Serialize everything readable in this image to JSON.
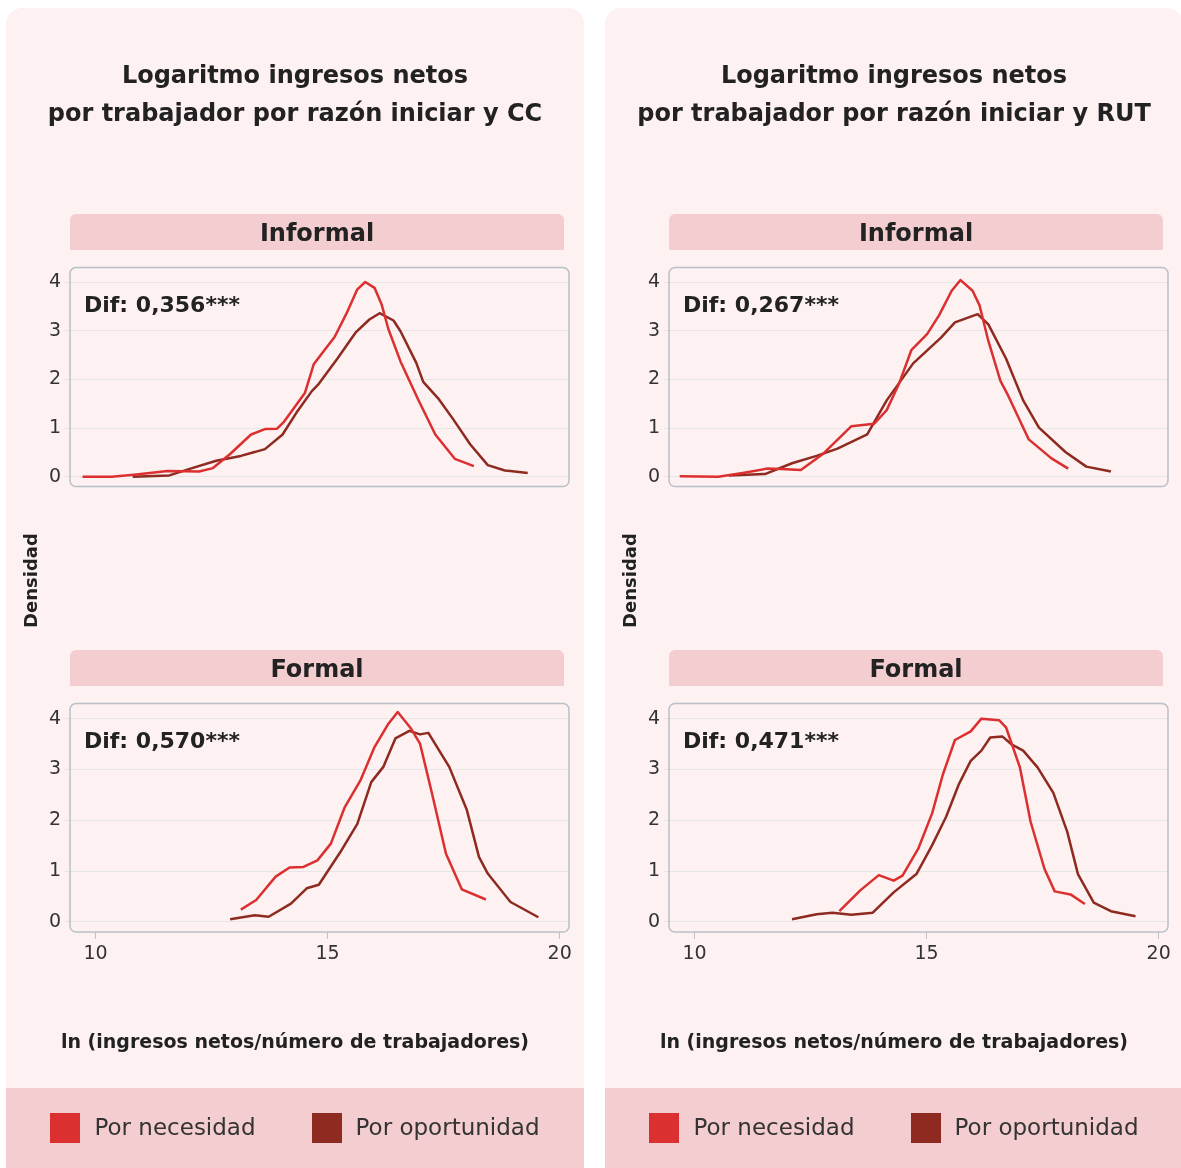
{
  "chart_data": [
    {
      "type": "line",
      "title": "Logaritmo ingresos netos\npor trabajador por razón iniciar y CC",
      "subtitle": "Informal",
      "ylabel": "Densidad",
      "annotations": [
        "Dif: 0,356***"
      ],
      "xlim": [
        9.45,
        20.2
      ],
      "ylim": [
        -0.2,
        4.3
      ],
      "xticks": [
        10,
        15,
        20
      ],
      "yticks": [
        0,
        1,
        2,
        3,
        4
      ],
      "grid": "y",
      "tick_labels": "y",
      "series": [
        {
          "color": "#dc2f2f",
          "x": [
            9.72,
            10.35,
            10.88,
            11.55,
            12.23,
            12.53,
            12.9,
            13.35,
            13.65,
            13.91,
            14.06,
            14.51,
            14.7,
            14.93,
            15.15,
            15.41,
            15.64,
            15.81,
            16.01,
            16.16,
            16.31,
            16.57,
            16.95,
            17.32,
            17.74,
            18.15
          ],
          "values": [
            0.0,
            0.0,
            0.05,
            0.12,
            0.11,
            0.18,
            0.47,
            0.87,
            0.98,
            0.99,
            1.13,
            1.72,
            2.31,
            2.6,
            2.87,
            3.36,
            3.85,
            4.0,
            3.88,
            3.55,
            3.03,
            2.37,
            1.59,
            0.87,
            0.37,
            0.22
          ]
        },
        {
          "color": "#8e2a20",
          "x": [
            10.8,
            11.59,
            12.08,
            12.6,
            13.13,
            13.65,
            14.03,
            14.33,
            14.66,
            14.81,
            15.22,
            15.6,
            15.9,
            16.12,
            16.42,
            16.57,
            16.91,
            17.06,
            17.4,
            17.7,
            18.07,
            18.45,
            18.82,
            19.31
          ],
          "values": [
            0.0,
            0.03,
            0.18,
            0.33,
            0.43,
            0.57,
            0.87,
            1.32,
            1.76,
            1.91,
            2.44,
            2.96,
            3.23,
            3.36,
            3.21,
            2.99,
            2.34,
            1.95,
            1.59,
            1.19,
            0.67,
            0.24,
            0.13,
            0.08
          ]
        }
      ]
    },
    {
      "type": "line",
      "subtitle": "Formal",
      "xlabel": "ln (ingresos netos/número de trabajadores)",
      "annotations": [
        "Dif: 0,570***"
      ],
      "xlim": [
        9.45,
        20.2
      ],
      "ylim": [
        -0.2,
        4.3
      ],
      "xticks": [
        10,
        15,
        20
      ],
      "yticks": [
        0,
        1,
        2,
        3,
        4
      ],
      "grid": "y",
      "legend": "bottom",
      "series": [
        {
          "name": "Por necesidad",
          "color": "#dc2f2f",
          "x": [
            13.13,
            13.46,
            13.88,
            14.18,
            14.48,
            14.78,
            15.07,
            15.37,
            15.71,
            16.01,
            16.31,
            16.51,
            16.8,
            16.99,
            17.25,
            17.55,
            17.89,
            18.41
          ],
          "values": [
            0.24,
            0.43,
            0.89,
            1.07,
            1.08,
            1.21,
            1.54,
            2.26,
            2.79,
            3.44,
            3.9,
            4.13,
            3.8,
            3.51,
            2.52,
            1.34,
            0.64,
            0.44
          ]
        },
        {
          "name": "Por oportunidad",
          "color": "#8e2a20",
          "x": [
            12.9,
            13.43,
            13.73,
            14.21,
            14.55,
            14.81,
            15.3,
            15.64,
            15.94,
            16.2,
            16.46,
            16.76,
            16.99,
            17.17,
            17.62,
            18.0,
            18.26,
            18.45,
            18.94,
            19.54
          ],
          "values": [
            0.05,
            0.13,
            0.1,
            0.36,
            0.66,
            0.73,
            1.41,
            1.93,
            2.75,
            3.05,
            3.61,
            3.76,
            3.69,
            3.72,
            3.05,
            2.2,
            1.28,
            0.95,
            0.39,
            0.09
          ]
        }
      ]
    },
    {
      "type": "line",
      "title": "Logaritmo ingresos netos\npor trabajador por razón iniciar y RUT",
      "subtitle": "Informal",
      "ylabel": "Densidad",
      "annotations": [
        "Dif: 0,267***"
      ],
      "xlim": [
        9.45,
        20.2
      ],
      "ylim": [
        -0.2,
        4.3
      ],
      "xticks": [
        10,
        15,
        20
      ],
      "yticks": [
        0,
        1,
        2,
        3,
        4
      ],
      "grid": "y",
      "tick_labels": "y",
      "series": [
        {
          "color": "#dc2f2f",
          "x": [
            9.68,
            10.51,
            11.04,
            11.57,
            11.87,
            12.29,
            12.78,
            13.38,
            13.87,
            14.14,
            14.4,
            14.67,
            15.01,
            15.27,
            15.54,
            15.73,
            15.99,
            16.14,
            16.33,
            16.59,
            16.74,
            17.2,
            17.69,
            18.05
          ],
          "values": [
            0.01,
            0.0,
            0.08,
            0.17,
            0.16,
            0.14,
            0.48,
            1.04,
            1.09,
            1.37,
            1.9,
            2.6,
            2.93,
            3.32,
            3.82,
            4.04,
            3.82,
            3.52,
            2.79,
            1.97,
            1.7,
            0.77,
            0.38,
            0.17
          ]
        },
        {
          "color": "#8e2a20",
          "x": [
            10.74,
            11.53,
            12.1,
            12.63,
            13.08,
            13.72,
            14.14,
            14.71,
            15.31,
            15.61,
            16.1,
            16.33,
            16.71,
            17.08,
            17.42,
            17.99,
            18.44,
            18.97
          ],
          "values": [
            0.03,
            0.06,
            0.28,
            0.43,
            0.58,
            0.87,
            1.57,
            2.33,
            2.86,
            3.17,
            3.34,
            3.13,
            2.43,
            1.57,
            1.01,
            0.51,
            0.21,
            0.11
          ]
        }
      ]
    },
    {
      "type": "line",
      "subtitle": "Formal",
      "xlabel": "ln (ingresos netos/número de trabajadores)",
      "annotations": [
        "Dif: 0,471***"
      ],
      "xlim": [
        9.45,
        20.2
      ],
      "ylim": [
        -0.2,
        4.3
      ],
      "xticks": [
        10,
        15,
        20
      ],
      "yticks": [
        0,
        1,
        2,
        3,
        4
      ],
      "grid": "y",
      "legend": "bottom",
      "series": [
        {
          "name": "Por necesidad",
          "color": "#dc2f2f",
          "x": [
            13.12,
            13.57,
            13.97,
            14.29,
            14.48,
            14.82,
            15.12,
            15.35,
            15.61,
            15.95,
            16.18,
            16.56,
            16.71,
            17.01,
            17.24,
            17.54,
            17.76,
            18.1,
            18.41
          ],
          "values": [
            0.21,
            0.62,
            0.92,
            0.81,
            0.91,
            1.44,
            2.14,
            2.9,
            3.58,
            3.75,
            4.0,
            3.97,
            3.83,
            3.04,
            1.97,
            1.04,
            0.6,
            0.54,
            0.35
          ]
        },
        {
          "name": "Por oportunidad",
          "color": "#8e2a20",
          "x": [
            12.1,
            12.63,
            12.97,
            13.38,
            13.84,
            14.29,
            14.78,
            15.12,
            15.42,
            15.69,
            15.95,
            16.18,
            16.37,
            16.63,
            16.82,
            17.08,
            17.39,
            17.73,
            18.03,
            18.26,
            18.6,
            18.97,
            19.5
          ],
          "values": [
            0.05,
            0.15,
            0.18,
            0.14,
            0.18,
            0.58,
            0.94,
            1.51,
            2.07,
            2.7,
            3.17,
            3.37,
            3.63,
            3.65,
            3.5,
            3.37,
            3.04,
            2.54,
            1.77,
            0.94,
            0.38,
            0.21,
            0.11
          ]
        }
      ]
    }
  ]
}
